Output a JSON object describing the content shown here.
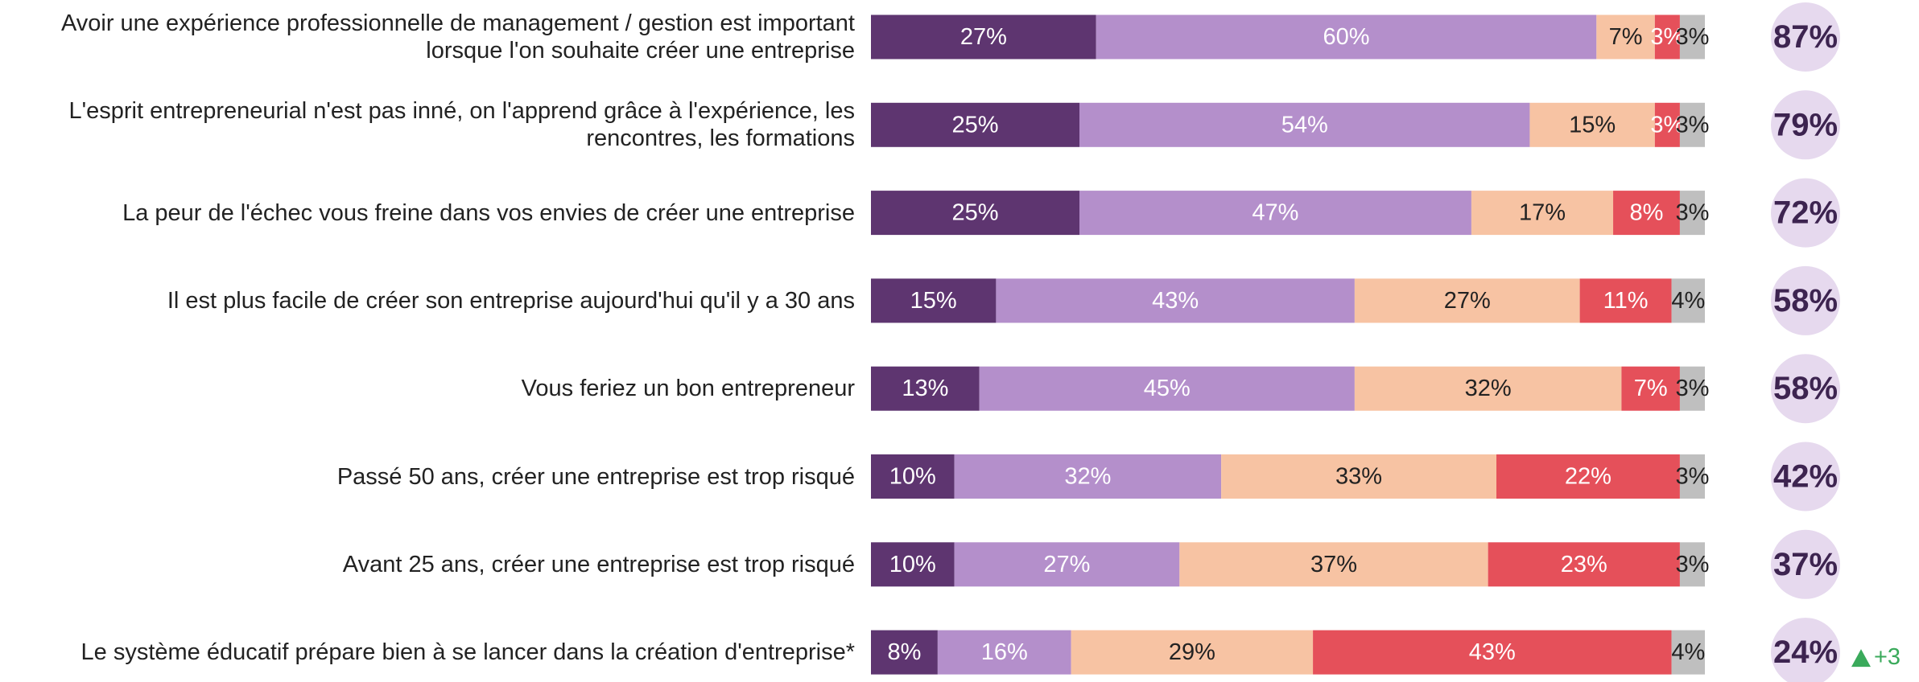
{
  "chart_data": {
    "type": "stacked-bar-horizontal",
    "categories": [
      "Avoir une expérience professionnelle de management / gestion est important lorsque l'on souhaite créer une entreprise",
      "L'esprit entrepreneurial n'est pas inné, on l'apprend grâce à l'expérience, les rencontres, les formations",
      "La peur de l'échec vous freine dans vos envies de créer une entreprise",
      "Il est plus facile de créer son entreprise aujourd'hui qu'il y a 30 ans",
      "Vous feriez un bon entrepreneur",
      "Passé 50 ans, créer une entreprise est trop risqué",
      "Avant 25 ans, créer une entreprise est trop risqué",
      "Le système éducatif prépare bien à se lancer dans la création d'entreprise*"
    ],
    "xlim": [
      0,
      100
    ],
    "series": [
      {
        "color": "#5e3570",
        "label_color": "#ffffff",
        "values": [
          27,
          25,
          25,
          15,
          13,
          10,
          10,
          8
        ],
        "value_labels": [
          "27%",
          "25%",
          "25%",
          "15%",
          "13%",
          "10%",
          "10%",
          "8%"
        ]
      },
      {
        "color": "#b48fcb",
        "label_color": "#ffffff",
        "values": [
          60,
          54,
          47,
          43,
          45,
          32,
          27,
          16
        ],
        "value_labels": [
          "60%",
          "54%",
          "47%",
          "43%",
          "45%",
          "32%",
          "27%",
          "16%"
        ]
      },
      {
        "color": "#f7c3a3",
        "label_color": "#222222",
        "values": [
          7,
          15,
          17,
          27,
          32,
          33,
          37,
          29
        ],
        "value_labels": [
          "7%",
          "15%",
          "17%",
          "27%",
          "32%",
          "33%",
          "37%",
          "29%"
        ]
      },
      {
        "color": "#e5505a",
        "label_color": "#ffffff",
        "values": [
          3,
          3,
          8,
          11,
          7,
          22,
          23,
          43
        ],
        "value_labels": [
          "3%",
          "3%",
          "8%",
          "11%",
          "7%",
          "22%",
          "23%",
          "43%"
        ]
      },
      {
        "color": "#bfbfbf",
        "label_color": "#222222",
        "values": [
          3,
          3,
          3,
          4,
          3,
          3,
          3,
          4
        ],
        "value_labels": [
          "3%",
          "3%",
          "3%",
          "4%",
          "3%",
          "3%",
          "3%",
          "4%"
        ]
      }
    ],
    "totals": {
      "color": "#e6d9ee",
      "label_color": "#3d2450",
      "values": [
        87,
        79,
        72,
        58,
        58,
        42,
        37,
        24
      ],
      "value_labels": [
        "87%",
        "79%",
        "72%",
        "58%",
        "58%",
        "42%",
        "37%",
        "24%"
      ]
    },
    "annotation": "+3"
  }
}
